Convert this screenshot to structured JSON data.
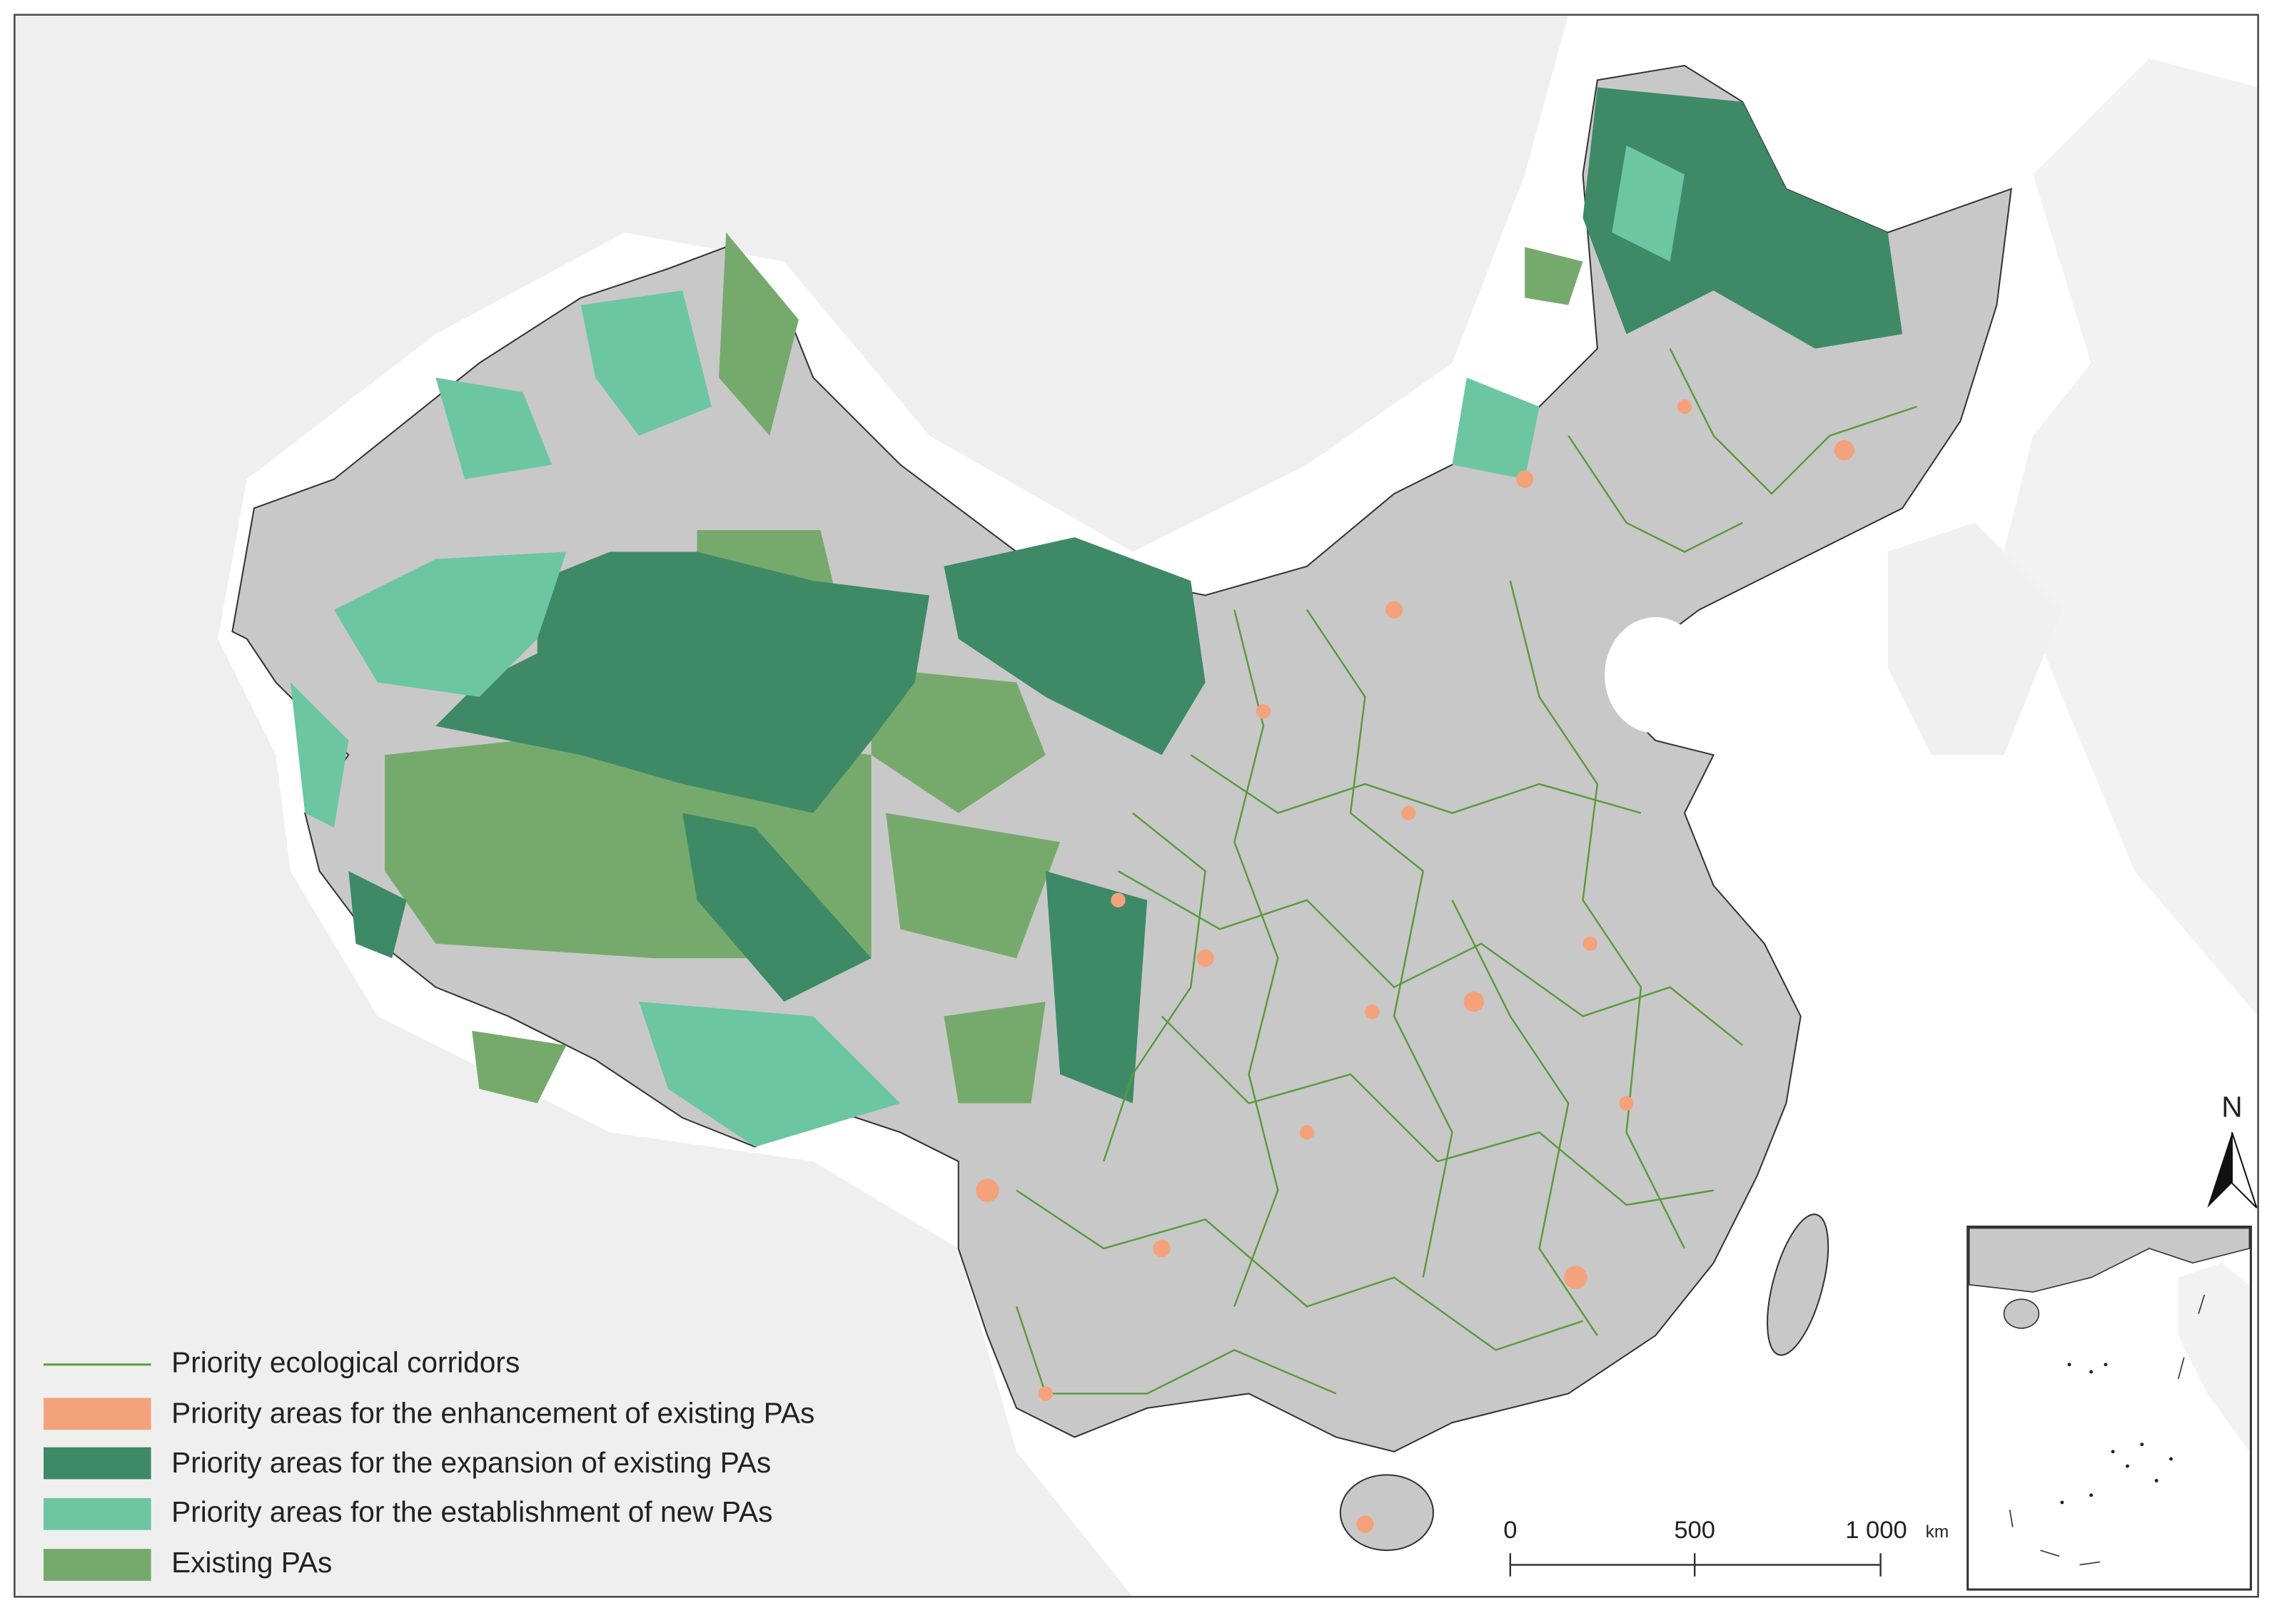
{
  "legend": {
    "items": [
      {
        "label": "Priority ecological corridors",
        "color": "#5a9a3c"
      },
      {
        "label": "Priority areas for the enhancement of existing PAs",
        "color": "#f4a27c"
      },
      {
        "label": "Priority areas for the expansion of existing PAs",
        "color": "#3e8a66"
      },
      {
        "label": "Priority areas for the establishment of new PAs",
        "color": "#6cc6a2"
      },
      {
        "label": "Existing PAs",
        "color": "#76aa6c"
      }
    ]
  },
  "scale_bar": {
    "labels": [
      "0",
      "500",
      "1 000"
    ],
    "unit": "km"
  },
  "north_arrow": {
    "label": "N"
  }
}
